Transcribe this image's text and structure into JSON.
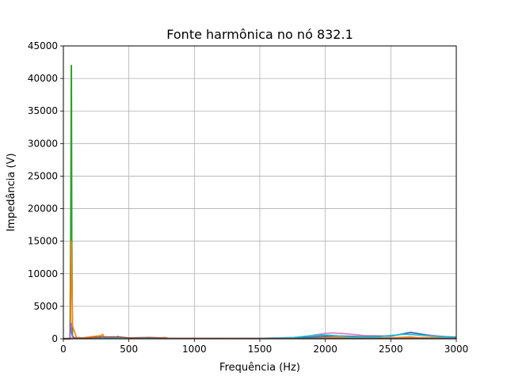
{
  "chart_data": {
    "type": "line",
    "title": "Fonte harmônica no nó 832.1",
    "xlabel": "Frequência (Hz)",
    "ylabel": "Impedância (V)",
    "xlim": [
      0,
      3000
    ],
    "ylim": [
      0,
      45000
    ],
    "xticks": [
      0,
      500,
      1000,
      1500,
      2000,
      2500,
      3000
    ],
    "yticks": [
      0,
      5000,
      10000,
      15000,
      20000,
      25000,
      30000,
      35000,
      40000,
      45000
    ],
    "xtick_labels": [
      "0",
      "500",
      "1000",
      "1500",
      "2000",
      "2500",
      "3000"
    ],
    "ytick_labels": [
      "0",
      "5000",
      "10000",
      "15000",
      "20000",
      "25000",
      "30000",
      "35000",
      "40000",
      "45000"
    ],
    "grid": true,
    "series": [
      {
        "color": "#2ca02c",
        "x": [
          0,
          50,
          55,
          60,
          62,
          65,
          70,
          80,
          100,
          3000
        ],
        "y": [
          0,
          0,
          15000,
          42000,
          42000,
          15000,
          500,
          100,
          50,
          50
        ]
      },
      {
        "color": "#ff7f0e",
        "x": [
          0,
          50,
          55,
          60,
          65,
          70,
          100,
          150,
          200,
          250,
          290,
          300,
          310,
          350,
          400,
          420,
          430,
          500,
          700,
          780,
          800,
          1500,
          1900,
          2000,
          2100,
          2200,
          2500,
          2650,
          2700,
          3000
        ],
        "y": [
          0,
          0,
          2500,
          15000,
          9000,
          2000,
          200,
          150,
          300,
          400,
          500,
          700,
          300,
          200,
          150,
          400,
          150,
          100,
          100,
          200,
          80,
          80,
          100,
          200,
          250,
          150,
          150,
          300,
          200,
          150
        ]
      },
      {
        "color": "#9467bd",
        "x": [
          0,
          50,
          55,
          58,
          62,
          70,
          100,
          500,
          1500,
          3000
        ],
        "y": [
          0,
          0,
          2400,
          2400,
          1000,
          300,
          100,
          80,
          60,
          60
        ]
      },
      {
        "color": "#e377c2",
        "x": [
          0,
          100,
          1500,
          1800,
          1950,
          2000,
          2050,
          2150,
          2300,
          2450,
          2550,
          2650,
          2750,
          2900,
          3000
        ],
        "y": [
          50,
          60,
          80,
          200,
          700,
          850,
          900,
          800,
          500,
          450,
          600,
          900,
          700,
          350,
          200
        ]
      },
      {
        "color": "#1f77b4",
        "x": [
          0,
          1500,
          1800,
          2000,
          2100,
          2300,
          2500,
          2600,
          2650,
          2700,
          2800,
          3000
        ],
        "y": [
          40,
          60,
          150,
          400,
          450,
          350,
          400,
          800,
          1000,
          850,
          450,
          250
        ]
      },
      {
        "color": "#17becf",
        "x": [
          0,
          1500,
          1750,
          1900,
          2000,
          2200,
          2400,
          2600,
          2700,
          2900,
          3000
        ],
        "y": [
          30,
          50,
          200,
          500,
          600,
          300,
          300,
          700,
          600,
          300,
          150
        ]
      },
      {
        "color": "#8c564b",
        "x": [
          0,
          100,
          200,
          300,
          420,
          500,
          660,
          800,
          1500,
          3000
        ],
        "y": [
          20,
          100,
          150,
          300,
          300,
          150,
          200,
          100,
          50,
          50
        ]
      }
    ]
  }
}
